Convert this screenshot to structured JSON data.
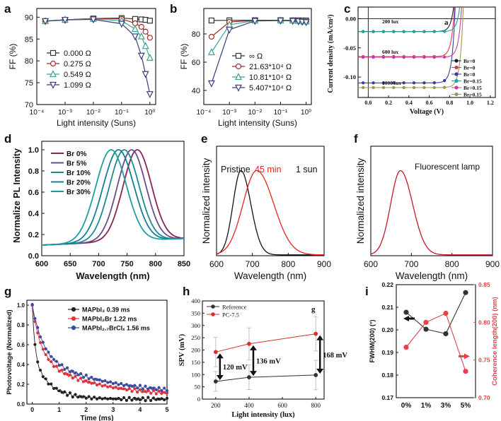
{
  "figure": {
    "panels": [
      {
        "id": "a",
        "label": "a"
      },
      {
        "id": "b",
        "label": "b"
      },
      {
        "id": "c",
        "label": "c"
      },
      {
        "id": "d",
        "label": "d"
      },
      {
        "id": "e",
        "label": "e"
      },
      {
        "id": "f",
        "label": "f"
      },
      {
        "id": "g",
        "label": "g"
      },
      {
        "id": "h",
        "label": "h"
      },
      {
        "id": "i",
        "label": "i"
      }
    ]
  },
  "chart_data": [
    {
      "id": "a",
      "type": "line",
      "xscale": "log",
      "xlabel": "Light intensity (Suns)",
      "ylabel": "FF (%)",
      "xlim": [
        0.0001,
        1.6
      ],
      "ylim": [
        70,
        92
      ],
      "xticks": [
        0.0001,
        0.001,
        0.01,
        0.1,
        1
      ],
      "xticklabels": [
        "10⁻⁴",
        "10⁻³",
        "10⁻²",
        "10⁻¹",
        "10⁰"
      ],
      "yticks": [
        70,
        75,
        80,
        85,
        90
      ],
      "legend": [
        "0.000 Ω",
        "0.275 Ω",
        "0.549 Ω",
        "1.099 Ω"
      ],
      "legend_position": "center-left",
      "series": [
        {
          "name": "0.000 Ω",
          "color": "#333333",
          "marker": "square",
          "x": [
            0.0002,
            0.001,
            0.01,
            0.1,
            0.3,
            0.5,
            0.7,
            1.0
          ],
          "y": [
            89.1,
            89.4,
            89.7,
            89.8,
            89.6,
            89.5,
            89.4,
            89.2
          ]
        },
        {
          "name": "0.275 Ω",
          "color": "#a02c2c",
          "marker": "circle",
          "x": [
            0.0002,
            0.001,
            0.01,
            0.1,
            0.3,
            0.5,
            0.7,
            1.0
          ],
          "y": [
            89.1,
            89.4,
            89.7,
            89.6,
            88.6,
            87.8,
            86.7,
            85.3
          ]
        },
        {
          "name": "0.549 Ω",
          "color": "#3aa58f",
          "marker": "triangle-up",
          "x": [
            0.0002,
            0.001,
            0.01,
            0.1,
            0.3,
            0.5,
            0.7,
            1.0
          ],
          "y": [
            89.1,
            89.4,
            89.6,
            89.2,
            87.3,
            85.6,
            83.4,
            80.7
          ]
        },
        {
          "name": "1.099 Ω",
          "color": "#3a3f7a",
          "marker": "triangle-down",
          "x": [
            0.0002,
            0.001,
            0.01,
            0.1,
            0.3,
            0.5,
            0.7,
            1.0
          ],
          "y": [
            89.1,
            89.4,
            89.5,
            88.5,
            85.6,
            81.2,
            77.0,
            72.4
          ]
        }
      ]
    },
    {
      "id": "b",
      "type": "line",
      "xscale": "log",
      "xlabel": "Light intensity (Suns)",
      "ylabel": "FF (%)",
      "xlim": [
        0.0001,
        1.6
      ],
      "ylim": [
        30,
        98
      ],
      "xticks": [
        0.0001,
        0.001,
        0.01,
        0.1,
        1
      ],
      "xticklabels": [
        "10⁻⁴",
        "10⁻³",
        "10⁻²",
        "10⁻¹",
        "10⁰"
      ],
      "yticks": [
        40,
        60,
        80
      ],
      "legend": [
        "∞      Ω",
        "21.63*10⁴ Ω",
        "10.81*10⁴ Ω",
        "5.407*10⁴ Ω"
      ],
      "legend_position": "bottom-right",
      "series": [
        {
          "name": "∞ Ω",
          "color": "#333333",
          "marker": "square",
          "x": [
            0.0002,
            0.001,
            0.01,
            0.1,
            0.3,
            0.5,
            0.7,
            1.0
          ],
          "y": [
            89.5,
            89.6,
            89.7,
            89.7,
            89.6,
            89.6,
            89.5,
            89.5
          ]
        },
        {
          "name": "21.63*10⁴ Ω",
          "color": "#a02c2c",
          "marker": "circle",
          "x": [
            0.0002,
            0.001,
            0.01,
            0.1,
            0.3,
            0.5,
            0.7,
            1.0
          ],
          "y": [
            78,
            88.5,
            89.5,
            89.6,
            89.5,
            89.4,
            89.2,
            89.0
          ]
        },
        {
          "name": "10.81*10⁴ Ω",
          "color": "#3aa58f",
          "marker": "triangle-up",
          "x": [
            0.0002,
            0.001,
            0.01,
            0.1,
            0.3,
            0.5,
            0.7,
            1.0
          ],
          "y": [
            67,
            86.5,
            89.4,
            89.5,
            89.4,
            89.2,
            89.0,
            88.8
          ]
        },
        {
          "name": "5.407*10⁴ Ω",
          "color": "#3a3f7a",
          "marker": "triangle-down",
          "x": [
            0.0002,
            0.001,
            0.01,
            0.1,
            0.3,
            0.5,
            0.7,
            1.0
          ],
          "y": [
            45,
            83,
            89.2,
            89.4,
            89.2,
            88.9,
            88.6,
            88.3
          ]
        }
      ]
    },
    {
      "id": "c",
      "type": "line",
      "xlabel": "Voltage (V)",
      "ylabel": "Current density (mA/cm²)",
      "xlim": [
        -0.1,
        1.25
      ],
      "ylim": [
        -0.135,
        0.02
      ],
      "xticks": [
        0.0,
        0.2,
        0.4,
        0.6,
        0.8,
        1.0,
        1.2
      ],
      "xticklabels": [
        "0.0",
        "0.2",
        "0.4",
        "0.6",
        "0.8",
        "1.0",
        "1.2"
      ],
      "yticks": [
        0.0,
        -0.05,
        -0.1
      ],
      "yticklabels": [
        "0.00",
        "-0.05",
        "-0.10"
      ],
      "inner_label": "a",
      "annotations": [
        "200 lux",
        "600 lux",
        "1000 lux"
      ],
      "legend": [
        "Br=0",
        "Br=0",
        "Br=0",
        "Br=0.15",
        "Br=0.15",
        "Br=0.15"
      ],
      "legend_position": "bottom-right",
      "series": [
        {
          "name": "Br=0 (200 lux)",
          "color": "#222222",
          "jsc": -0.022,
          "voc": 0.82
        },
        {
          "name": "Br=0 (600 lux)",
          "color": "#e2334b",
          "jsc": -0.065,
          "voc": 0.84
        },
        {
          "name": "Br=0 (1000 lux)",
          "color": "#3b3f9b",
          "jsc": -0.11,
          "voc": 0.85
        },
        {
          "name": "Br=0.15 (200 lux)",
          "color": "#2a9ea0",
          "jsc": -0.022,
          "voc": 0.88
        },
        {
          "name": "Br=0.15 (600 lux)",
          "color": "#c43fa3",
          "jsc": -0.066,
          "voc": 0.91
        },
        {
          "name": "Br=0.15 (1000 lux)",
          "color": "#9a9a4a",
          "jsc": -0.118,
          "voc": 0.93
        }
      ]
    },
    {
      "id": "d",
      "type": "line",
      "xlabel": "Wavelength (nm)",
      "ylabel": "Normalize PL Intensity",
      "xlim": [
        600,
        850
      ],
      "ylim": [
        0,
        1.08
      ],
      "xticks": [
        600,
        650,
        700,
        750,
        800,
        850
      ],
      "yticks": [
        0.0,
        0.2,
        0.4,
        0.6,
        0.8,
        1.0
      ],
      "yticklabels": [
        "0.0",
        "0.2",
        "0.4",
        "0.6",
        "0.8",
        "1.0"
      ],
      "legend": [
        "Br 0%",
        "Br 5%",
        "Br 10%",
        "Br 20%",
        "Br 30%"
      ],
      "legend_position": "top-left",
      "series": [
        {
          "name": "Br 0%",
          "color": "#8b2257",
          "peak": 768,
          "width": 25
        },
        {
          "name": "Br 5%",
          "color": "#6b4a8a",
          "peak": 758,
          "width": 25
        },
        {
          "name": "Br 10%",
          "color": "#1b8a8f",
          "peak": 745,
          "width": 26
        },
        {
          "name": "Br 20%",
          "color": "#137f95",
          "peak": 735,
          "width": 27
        },
        {
          "name": "Br 30%",
          "color": "#1f9ea1",
          "peak": 722,
          "width": 27
        }
      ],
      "baseline": 0.1
    },
    {
      "id": "e",
      "type": "line",
      "xlabel": "Wavelength (nm)",
      "ylabel": "Normalized intensity",
      "xlim": [
        600,
        900
      ],
      "ylim": [
        0,
        1.3
      ],
      "xticks": [
        600,
        700,
        800,
        900
      ],
      "annotations": [
        "Pristine",
        "45 min",
        "1 sun"
      ],
      "series": [
        {
          "name": "Pristine",
          "color": "#111111",
          "peak": 668,
          "width": 22
        },
        {
          "name": "45 min",
          "color": "#e8221d",
          "peak": 712,
          "width": 38
        }
      ]
    },
    {
      "id": "f",
      "type": "line",
      "xlabel": "Wavelength (nm)",
      "ylabel": "Normalized intensity",
      "xlim": [
        600,
        900
      ],
      "ylim": [
        0,
        1.3
      ],
      "xticks": [
        600,
        700,
        800,
        900
      ],
      "annotations": [
        "Fluorescent lamp"
      ],
      "series": [
        {
          "name": "Fluorescent lamp",
          "color": "#c0192b",
          "peak": 673,
          "width": 24
        }
      ]
    },
    {
      "id": "g",
      "type": "scatter",
      "xlabel": "Time (ms)",
      "ylabel": "Photovoltage (Normalized)",
      "xlim": [
        -0.2,
        5
      ],
      "ylim": [
        0,
        1.05
      ],
      "xticks": [
        0,
        1,
        2,
        3,
        4,
        5
      ],
      "yticks": [
        0.0,
        0.2,
        0.4,
        0.6,
        0.8,
        1.0
      ],
      "yticklabels": [
        "0.0",
        "0.2",
        "0.4",
        "0.6",
        "0.8",
        "1.0"
      ],
      "legend": [
        "MAPbI₃ 0.39 ms",
        "MAPbI₂Br 1.22 ms",
        "MAPbI₂.₇BrClₓ 1.56 ms"
      ],
      "legend_position": "top-right",
      "series": [
        {
          "name": "MAPbI3 0.39 ms",
          "color": "#222222",
          "tau": 0.39
        },
        {
          "name": "MAPbI2Br 1.22 ms",
          "color": "#e2303f",
          "tau": 1.22
        },
        {
          "name": "MAPbI2.7BrClx 1.56 ms",
          "color": "#3a4b9a",
          "tau": 1.56
        }
      ]
    },
    {
      "id": "h",
      "type": "line",
      "xlabel": "Light intensity (lux)",
      "ylabel": "SPV (mV)",
      "xlim": [
        120,
        850
      ],
      "ylim": [
        0,
        400
      ],
      "xticks": [
        200,
        400,
        600,
        800
      ],
      "yticks": [
        0,
        50,
        100,
        150,
        200,
        250,
        300,
        350,
        400
      ],
      "inner_label": "g",
      "legend": [
        "Reference",
        "PC-7.5"
      ],
      "legend_position": "top-left",
      "annotations": [
        "120 mV",
        "136 mV",
        "168 mV"
      ],
      "series": [
        {
          "name": "Reference",
          "color": "#333333",
          "x": [
            200,
            400,
            800
          ],
          "y": [
            72,
            89,
            98
          ],
          "err": [
            40,
            50,
            60
          ]
        },
        {
          "name": "PC-7.5",
          "color": "#d9302a",
          "x": [
            200,
            400,
            800
          ],
          "y": [
            192,
            225,
            266
          ],
          "err": [
            60,
            65,
            70
          ]
        }
      ]
    },
    {
      "id": "i",
      "type": "line",
      "ylabel": "FWHM(200) (°)",
      "ylabel_right": "Coherence length(200) (nm)",
      "categories": [
        "0%",
        "1%",
        "3%",
        "5%"
      ],
      "ylim": [
        0.17,
        0.22
      ],
      "ylim_right": [
        0.7,
        0.85
      ],
      "yticks": [
        0.17,
        0.18,
        0.19,
        0.2,
        0.21,
        0.22
      ],
      "yticklabels": [
        "0.17",
        "0.18",
        "0.19",
        "0.20",
        "0.21",
        "0.22"
      ],
      "yticks_right": [
        0.7,
        0.75,
        0.8,
        0.85
      ],
      "yticklabels_right": [
        "0.70",
        "0.75",
        "0.80",
        "0.85"
      ],
      "series": [
        {
          "name": "FWHM",
          "color": "#333333",
          "axis": "left",
          "values": [
            0.2078,
            0.2003,
            0.1983,
            0.2165
          ]
        },
        {
          "name": "Coherence length",
          "color": "#e8404a",
          "axis": "right",
          "values": [
            0.767,
            0.8,
            0.812,
            0.735
          ]
        }
      ]
    }
  ]
}
